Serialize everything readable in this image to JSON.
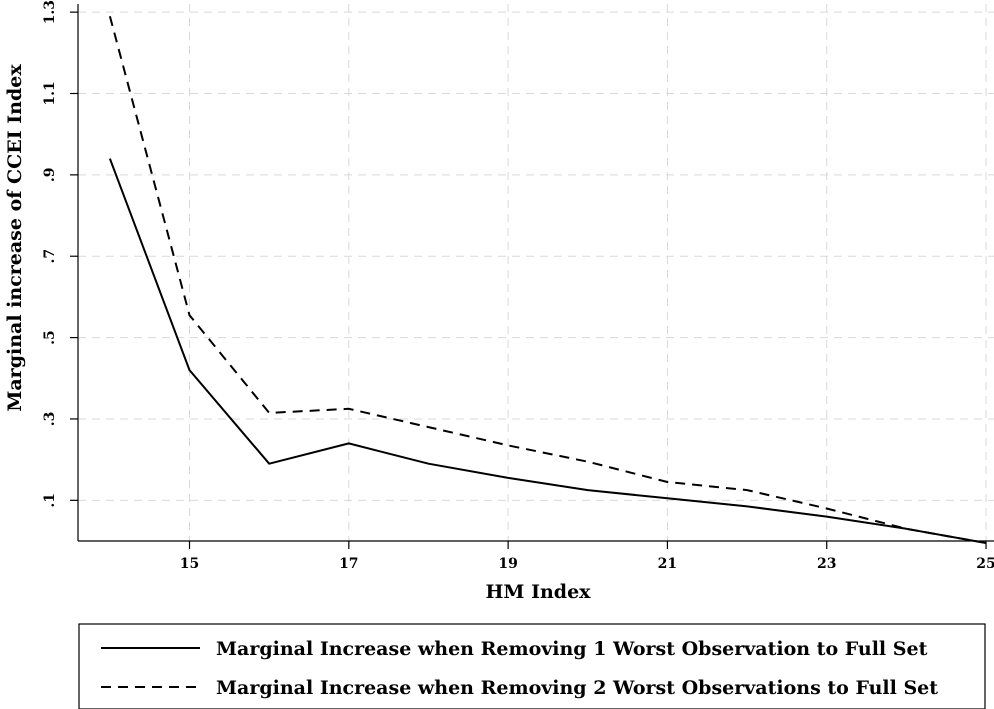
{
  "chart_data": {
    "type": "line",
    "xlabel": "HM Index",
    "ylabel": "Marginal increase of CCEI Index",
    "xlim": [
      13.6,
      25.1
    ],
    "ylim": [
      0,
      1.32
    ],
    "x_ticks": [
      {
        "value": 15,
        "label": "15"
      },
      {
        "value": 17,
        "label": "17"
      },
      {
        "value": 19,
        "label": "19"
      },
      {
        "value": 21,
        "label": "21"
      },
      {
        "value": 23,
        "label": "23"
      },
      {
        "value": 25,
        "label": "25"
      }
    ],
    "y_ticks": [
      {
        "value": 0.1,
        "label": ".1"
      },
      {
        "value": 0.3,
        "label": ".3"
      },
      {
        "value": 0.5,
        "label": ".5"
      },
      {
        "value": 0.7,
        "label": ".7"
      },
      {
        "value": 0.9,
        "label": ".9"
      },
      {
        "value": 1.1,
        "label": "1.1"
      },
      {
        "value": 1.3,
        "label": "1.3"
      }
    ],
    "x_grid": [
      15,
      17,
      19,
      21,
      23,
      25
    ],
    "y_grid": [
      0.1,
      0.3,
      0.5,
      0.7,
      0.9,
      1.1,
      1.3
    ],
    "grid": true,
    "legend_position": "bottom",
    "x": [
      14,
      15,
      16,
      17,
      18,
      19,
      20,
      21,
      22,
      23,
      24,
      25
    ],
    "series": [
      {
        "name": "Marginal Increase when Removing 1 Worst Observation to Full Set",
        "style": "solid",
        "values": [
          0.94,
          0.42,
          0.19,
          0.24,
          0.19,
          0.155,
          0.125,
          0.105,
          0.085,
          0.06,
          0.03,
          -0.005
        ]
      },
      {
        "name": "Marginal Increase when Removing 2 Worst Observations to Full Set",
        "style": "dashed",
        "values": [
          1.29,
          0.555,
          0.315,
          0.325,
          0.28,
          0.235,
          0.195,
          0.145,
          0.125,
          0.08,
          0.03,
          -0.005
        ]
      }
    ]
  }
}
